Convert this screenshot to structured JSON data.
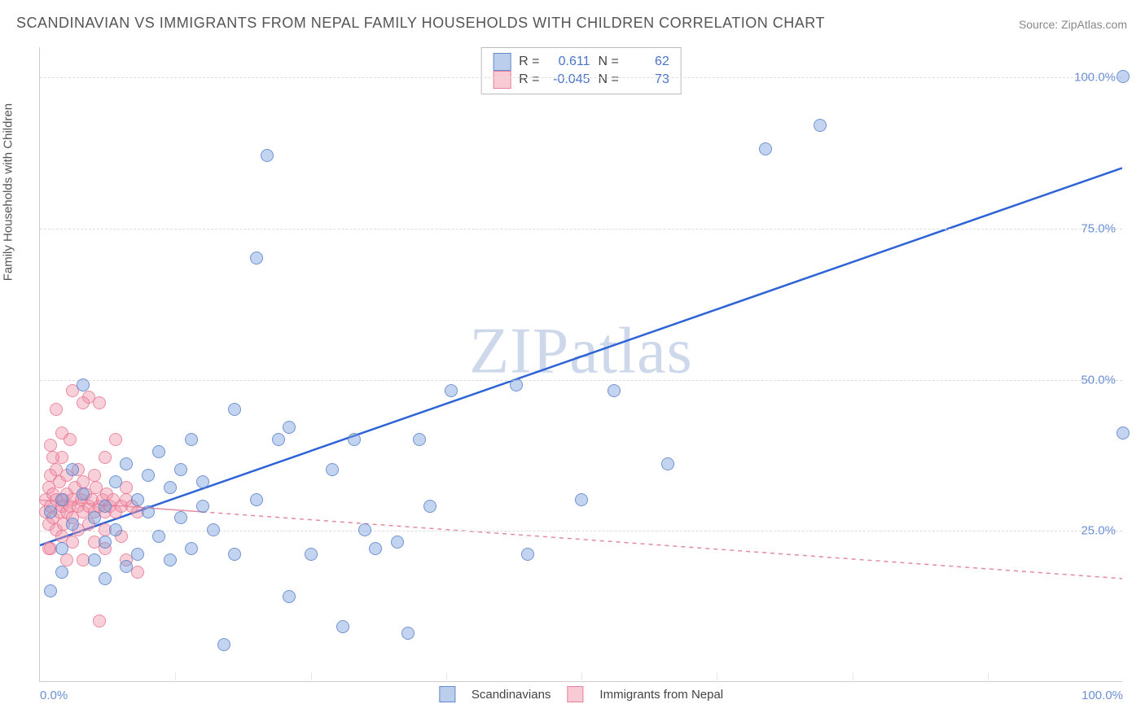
{
  "title": "SCANDINAVIAN VS IMMIGRANTS FROM NEPAL FAMILY HOUSEHOLDS WITH CHILDREN CORRELATION CHART",
  "source": "Source: ZipAtlas.com",
  "ylabel": "Family Households with Children",
  "watermark": "ZIPatlas",
  "chart": {
    "type": "scatter",
    "xlim": [
      0,
      100
    ],
    "ylim": [
      0,
      105
    ],
    "x_ticks": [
      0,
      100
    ],
    "x_tick_labels": [
      "0.0%",
      "100.0%"
    ],
    "y_ticks": [
      25,
      50,
      75,
      100
    ],
    "y_tick_labels": [
      "25.0%",
      "50.0%",
      "75.0%",
      "100.0%"
    ],
    "x_minor_ticks": [
      12.5,
      25,
      37.5,
      50,
      62.5,
      75,
      87.5
    ],
    "background_color": "#ffffff",
    "grid_color": "#dddddd",
    "axis_color": "#cccccc",
    "tick_label_color": "#6b8fd4",
    "tick_fontsize": 15,
    "title_fontsize": 18,
    "title_color": "#555555",
    "marker_radius": 8,
    "series": {
      "scandinavians": {
        "label": "Scandinavians",
        "color_fill": "rgba(120,160,220,0.45)",
        "color_stroke": "rgba(80,120,200,0.7)",
        "R": "0.611",
        "N": "62",
        "trend": {
          "y_at_x0": 22.5,
          "y_at_x100": 85,
          "stroke": "#2e63d6",
          "width": 2.5,
          "dash": "none"
        },
        "points": [
          [
            1,
            15
          ],
          [
            1,
            28
          ],
          [
            2,
            30
          ],
          [
            2,
            22
          ],
          [
            3,
            26
          ],
          [
            3,
            35
          ],
          [
            4,
            31
          ],
          [
            4,
            49
          ],
          [
            5,
            20
          ],
          [
            5,
            27
          ],
          [
            6,
            29
          ],
          [
            6,
            23
          ],
          [
            7,
            33
          ],
          [
            7,
            25
          ],
          [
            8,
            19
          ],
          [
            8,
            36
          ],
          [
            9,
            21
          ],
          [
            9,
            30
          ],
          [
            10,
            28
          ],
          [
            10,
            34
          ],
          [
            11,
            24
          ],
          [
            11,
            38
          ],
          [
            12,
            20
          ],
          [
            12,
            32
          ],
          [
            13,
            27
          ],
          [
            13,
            35
          ],
          [
            14,
            22
          ],
          [
            14,
            40
          ],
          [
            15,
            29
          ],
          [
            15,
            33
          ],
          [
            16,
            25
          ],
          [
            17,
            6
          ],
          [
            18,
            21
          ],
          [
            18,
            45
          ],
          [
            20,
            30
          ],
          [
            20,
            70
          ],
          [
            21,
            87
          ],
          [
            22,
            40
          ],
          [
            23,
            14
          ],
          [
            23,
            42
          ],
          [
            25,
            21
          ],
          [
            27,
            35
          ],
          [
            28,
            9
          ],
          [
            29,
            40
          ],
          [
            30,
            25
          ],
          [
            31,
            22
          ],
          [
            33,
            23
          ],
          [
            34,
            8
          ],
          [
            35,
            40
          ],
          [
            36,
            29
          ],
          [
            38,
            48
          ],
          [
            44,
            49
          ],
          [
            45,
            21
          ],
          [
            50,
            30
          ],
          [
            53,
            48
          ],
          [
            58,
            36
          ],
          [
            67,
            88
          ],
          [
            72,
            92
          ],
          [
            100,
            41
          ],
          [
            100,
            100
          ],
          [
            2,
            18
          ],
          [
            6,
            17
          ]
        ]
      },
      "nepal": {
        "label": "Immigrants from Nepal",
        "color_fill": "rgba(240,150,170,0.45)",
        "color_stroke": "rgba(230,110,140,0.7)",
        "R": "-0.045",
        "N": "73",
        "trend": {
          "y_at_x0": 30,
          "y_at_x100": 17,
          "stroke": "#e38aa0",
          "width": 1.5,
          "dash": "5 5",
          "solid_until_x": 15
        },
        "points": [
          [
            0.5,
            28
          ],
          [
            0.5,
            30
          ],
          [
            0.8,
            32
          ],
          [
            0.8,
            26
          ],
          [
            1,
            29
          ],
          [
            1,
            34
          ],
          [
            1,
            22
          ],
          [
            1.2,
            31
          ],
          [
            1.2,
            27
          ],
          [
            1.5,
            30
          ],
          [
            1.5,
            25
          ],
          [
            1.5,
            35
          ],
          [
            1.8,
            28
          ],
          [
            1.8,
            33
          ],
          [
            2,
            29
          ],
          [
            2,
            24
          ],
          [
            2,
            37
          ],
          [
            2.2,
            30
          ],
          [
            2.2,
            26
          ],
          [
            2.5,
            31
          ],
          [
            2.5,
            28
          ],
          [
            2.5,
            34
          ],
          [
            2.8,
            29
          ],
          [
            2.8,
            40
          ],
          [
            3,
            30
          ],
          [
            3,
            27
          ],
          [
            3,
            23
          ],
          [
            3.2,
            32
          ],
          [
            3.5,
            29
          ],
          [
            3.5,
            35
          ],
          [
            3.5,
            25
          ],
          [
            3.8,
            30
          ],
          [
            4,
            28
          ],
          [
            4,
            33
          ],
          [
            4,
            20
          ],
          [
            4.2,
            31
          ],
          [
            4.5,
            29
          ],
          [
            4.5,
            26
          ],
          [
            4.5,
            47
          ],
          [
            4.8,
            30
          ],
          [
            5,
            28
          ],
          [
            5,
            34
          ],
          [
            5,
            23
          ],
          [
            5.2,
            32
          ],
          [
            5.5,
            29
          ],
          [
            5.5,
            46
          ],
          [
            5.8,
            30
          ],
          [
            6,
            28
          ],
          [
            6,
            25
          ],
          [
            6,
            37
          ],
          [
            6.2,
            31
          ],
          [
            6.5,
            29
          ],
          [
            6.8,
            30
          ],
          [
            7,
            28
          ],
          [
            7,
            40
          ],
          [
            7.5,
            29
          ],
          [
            7.5,
            24
          ],
          [
            8,
            30
          ],
          [
            8,
            32
          ],
          [
            8,
            20
          ],
          [
            8.5,
            29
          ],
          [
            9,
            28
          ],
          [
            9,
            18
          ],
          [
            3,
            48
          ],
          [
            4,
            46
          ],
          [
            2,
            41
          ],
          [
            1,
            39
          ],
          [
            5.5,
            10
          ],
          [
            1.5,
            45
          ],
          [
            2.5,
            20
          ],
          [
            0.8,
            22
          ],
          [
            1.2,
            37
          ],
          [
            6,
            22
          ]
        ]
      }
    }
  },
  "legend": {
    "r_label": "R =",
    "n_label": "N ="
  }
}
